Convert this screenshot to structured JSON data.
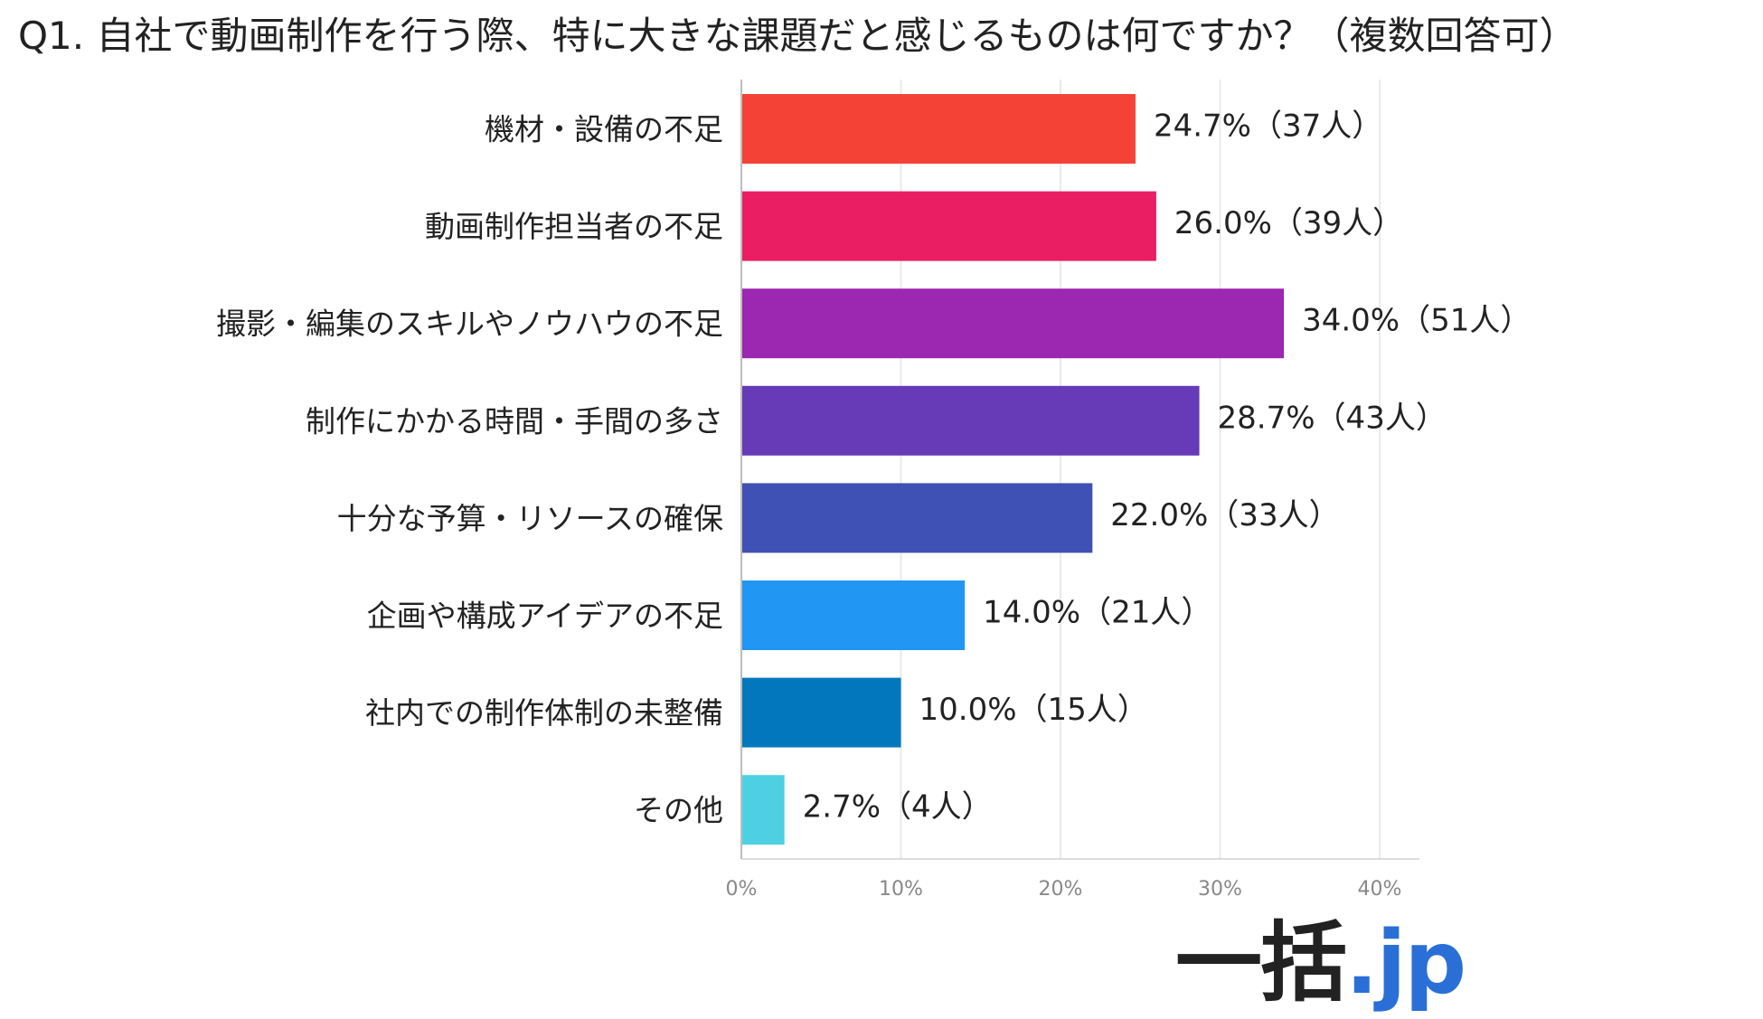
{
  "chart_data": {
    "type": "bar",
    "orientation": "horizontal",
    "title": "Q1. 自社で動画制作を行う際、特に大きな課題だと感じるものは何ですか？（複数回答可）",
    "categories": [
      "機材・設備の不足",
      "動画制作担当者の不足",
      "撮影・編集のスキルやノウハウの不足",
      "制作にかかる時間・手間の多さ",
      "十分な予算・リソースの確保",
      "企画や構成アイデアの不足",
      "社内での制作体制の未整備",
      "その他"
    ],
    "values": [
      24.7,
      26.0,
      34.0,
      28.7,
      22.0,
      14.0,
      10.0,
      2.7
    ],
    "value_labels": [
      "24.7%（37人）",
      "26.0%（39人）",
      "34.0%（51人）",
      "28.7%（43人）",
      "22.0%（33人）",
      "14.0%（21人）",
      "10.0%（15人）",
      "2.7%（4人）"
    ],
    "colors": [
      "#f44336",
      "#e91e63",
      "#9c27b0",
      "#673ab7",
      "#3f51b5",
      "#2196f3",
      "#0277bd",
      "#4dd0e1"
    ],
    "xlim": [
      0,
      42.5
    ],
    "xticks": [
      0,
      10,
      20,
      30,
      40
    ],
    "xtick_labels": [
      "0%",
      "10%",
      "20%",
      "30%",
      "40%"
    ],
    "grid": true,
    "xlabel": "",
    "ylabel": ""
  },
  "logo": {
    "main": "一括",
    "suffix": ".jp"
  }
}
